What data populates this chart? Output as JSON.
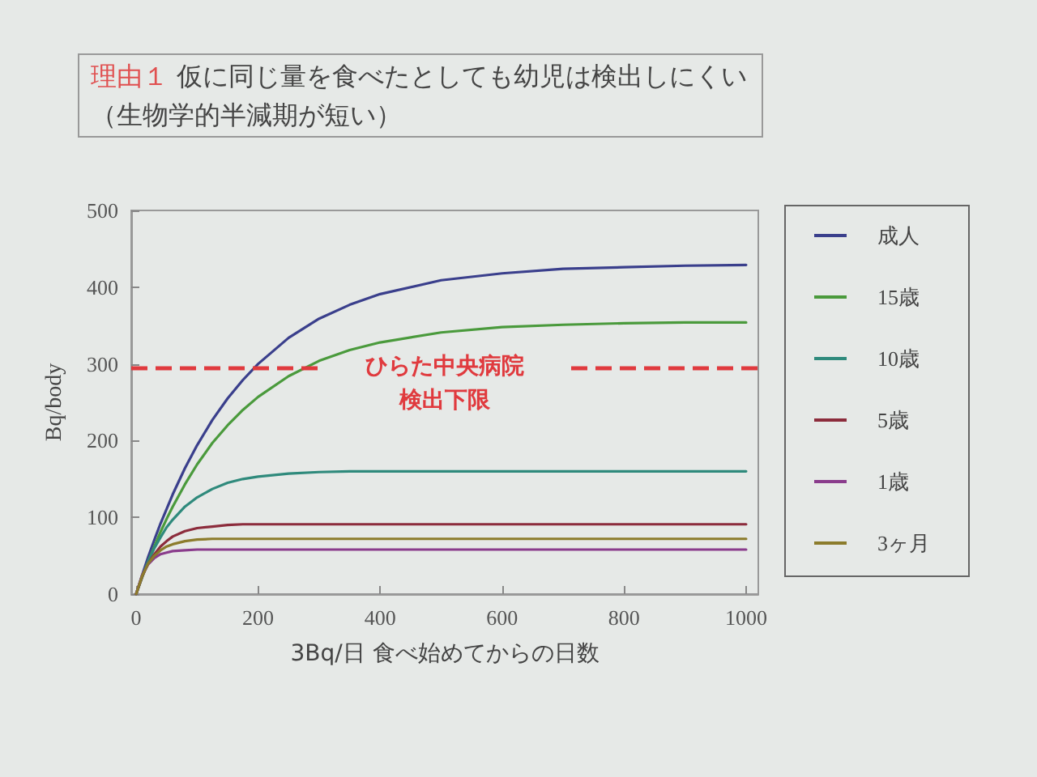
{
  "chart_data": {
    "type": "line",
    "title": "理由１ 仮に同じ量を食べたとしても幼児は検出しにくい",
    "subtitle": "（生物学的半減期が短い）",
    "xlabel": "3Bq/日 食べ始めてからの日数",
    "ylabel": "Bq/body",
    "x": [
      0,
      10,
      20,
      30,
      40,
      50,
      60,
      80,
      100,
      125,
      150,
      175,
      200,
      250,
      300,
      350,
      400,
      500,
      600,
      700,
      800,
      900,
      1000
    ],
    "series": [
      {
        "name": "成人",
        "color": "#3a3f8c",
        "values": [
          0,
          25,
          49,
          71,
          92,
          111,
          130,
          164,
          194,
          227,
          255,
          279,
          300,
          334,
          359,
          377,
          391,
          409,
          418,
          424,
          426,
          428,
          429
        ]
      },
      {
        "name": "15歳",
        "color": "#4a9a3c",
        "values": [
          0,
          22,
          43,
          62,
          81,
          98,
          114,
          143,
          169,
          197,
          220,
          240,
          257,
          284,
          304,
          318,
          328,
          341,
          348,
          351,
          353,
          354,
          354
        ]
      },
      {
        "name": "10歳",
        "color": "#2f8a7c",
        "values": [
          0,
          23,
          43,
          60,
          74,
          87,
          97,
          114,
          126,
          137,
          145,
          150,
          153,
          157,
          159,
          160,
          160,
          160,
          160,
          160,
          160,
          160,
          160
        ]
      },
      {
        "name": "5歳",
        "color": "#8c2c3c",
        "values": [
          0,
          23,
          40,
          52,
          62,
          69,
          75,
          82,
          86,
          88,
          90,
          91,
          91,
          91,
          91,
          91,
          91,
          91,
          91,
          91,
          91,
          91,
          91
        ]
      },
      {
        "name": "1歳",
        "color": "#8a3c8c",
        "values": [
          0,
          25,
          39,
          47,
          52,
          54,
          56,
          57,
          58,
          58,
          58,
          58,
          58,
          58,
          58,
          58,
          58,
          58,
          58,
          58,
          58,
          58,
          58
        ]
      },
      {
        "name": "3ヶ月",
        "color": "#8c7c2c",
        "values": [
          0,
          24,
          40,
          50,
          57,
          62,
          65,
          69,
          71,
          72,
          72,
          72,
          72,
          72,
          72,
          72,
          72,
          72,
          72,
          72,
          72,
          72,
          72
        ]
      }
    ],
    "xlim": [
      -8,
      1020
    ],
    "xticks": [
      0,
      200,
      400,
      600,
      800,
      1000
    ],
    "ylim": [
      0,
      500
    ],
    "yticks": [
      0,
      100,
      200,
      300,
      400,
      500
    ],
    "ref_lines": [
      {
        "axis": "y",
        "value": 295,
        "label": "ひらた中央病院検出下限",
        "color": "#e03a3e",
        "line_style": "dashed"
      }
    ],
    "legend": "right",
    "marker": "none",
    "line_style": "solid"
  }
}
